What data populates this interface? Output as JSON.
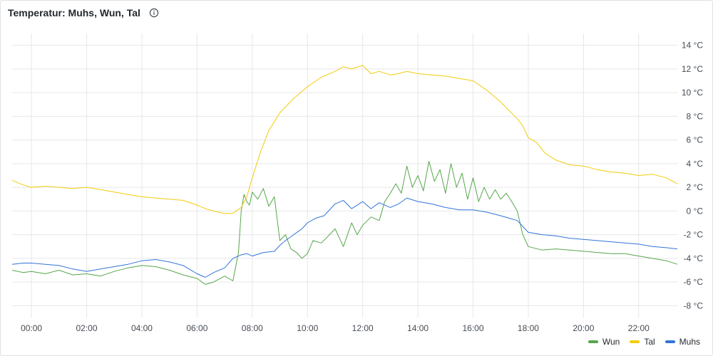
{
  "panel": {
    "title": "Temperatur: Muhs, Wun, Tal",
    "info_icon": "info-circle-icon"
  },
  "chart_data": {
    "type": "line",
    "title": "Temperatur: Muhs, Wun, Tal",
    "xlabel": "",
    "ylabel": "",
    "x_unit": "hour of day",
    "x_range": [
      -0.7,
      23.4
    ],
    "x_ticks": [
      0,
      2,
      4,
      6,
      8,
      10,
      12,
      14,
      16,
      18,
      20,
      22
    ],
    "x_tick_labels": [
      "00:00",
      "02:00",
      "04:00",
      "06:00",
      "08:00",
      "10:00",
      "12:00",
      "14:00",
      "16:00",
      "18:00",
      "20:00",
      "22:00"
    ],
    "ylim": [
      -9,
      15
    ],
    "y_ticks": [
      14,
      12,
      10,
      8,
      6,
      4,
      2,
      0,
      -2,
      -4,
      -6,
      -8
    ],
    "y_tick_labels": [
      "14 °C",
      "12 °C",
      "10 °C",
      "8 °C",
      "6 °C",
      "4 °C",
      "2 °C",
      "0 °C",
      "-2 °C",
      "-4 °C",
      "-6 °C",
      "-8 °C"
    ],
    "y_axis_position": "right",
    "grid": true,
    "legend_position": "bottom-right",
    "series": [
      {
        "name": "Wun",
        "color": "#56a64b",
        "x": [
          -0.7,
          -0.3,
          0.0,
          0.5,
          1.0,
          1.5,
          2.0,
          2.5,
          3.0,
          3.5,
          4.0,
          4.5,
          5.0,
          5.5,
          6.0,
          6.3,
          6.6,
          7.0,
          7.3,
          7.5,
          7.6,
          7.7,
          7.8,
          7.9,
          8.0,
          8.2,
          8.4,
          8.6,
          8.8,
          9.0,
          9.2,
          9.4,
          9.6,
          9.8,
          10.0,
          10.2,
          10.5,
          10.8,
          11.0,
          11.3,
          11.6,
          11.8,
          12.0,
          12.3,
          12.6,
          12.8,
          13.0,
          13.2,
          13.4,
          13.6,
          13.8,
          14.0,
          14.2,
          14.4,
          14.6,
          14.8,
          15.0,
          15.2,
          15.4,
          15.6,
          15.8,
          16.0,
          16.2,
          16.4,
          16.6,
          16.8,
          17.0,
          17.2,
          17.4,
          17.6,
          17.8,
          18.0,
          18.5,
          19.0,
          19.5,
          20.0,
          20.5,
          21.0,
          21.5,
          22.0,
          22.5,
          23.0,
          23.4
        ],
        "values": [
          -5.0,
          -5.2,
          -5.1,
          -5.3,
          -5.0,
          -5.4,
          -5.3,
          -5.5,
          -5.1,
          -4.8,
          -4.6,
          -4.7,
          -5.0,
          -5.4,
          -5.7,
          -6.2,
          -6.0,
          -5.5,
          -5.9,
          -3.5,
          0.0,
          1.4,
          0.8,
          0.5,
          1.6,
          1.0,
          1.9,
          0.4,
          1.2,
          -2.5,
          -2.0,
          -3.2,
          -3.5,
          -4.0,
          -3.6,
          -2.5,
          -2.7,
          -2.0,
          -1.5,
          -3.0,
          -1.0,
          -2.0,
          -1.2,
          -0.5,
          -0.8,
          0.8,
          1.5,
          2.3,
          1.5,
          3.8,
          2.0,
          3.0,
          1.7,
          4.2,
          2.5,
          3.5,
          1.5,
          4.0,
          2.0,
          3.2,
          1.0,
          2.8,
          0.8,
          2.0,
          1.0,
          1.8,
          1.0,
          1.5,
          0.8,
          0.0,
          -2.0,
          -3.0,
          -3.3,
          -3.2,
          -3.3,
          -3.4,
          -3.5,
          -3.6,
          -3.6,
          -3.8,
          -4.0,
          -4.2,
          -4.5
        ]
      },
      {
        "name": "Tal",
        "color": "#f2cc0c",
        "x": [
          -0.7,
          -0.3,
          0.0,
          0.5,
          1.0,
          1.5,
          2.0,
          2.5,
          3.0,
          3.5,
          4.0,
          4.5,
          5.0,
          5.5,
          6.0,
          6.3,
          6.6,
          7.0,
          7.3,
          7.6,
          7.8,
          8.0,
          8.3,
          8.6,
          9.0,
          9.5,
          10.0,
          10.5,
          11.0,
          11.3,
          11.6,
          12.0,
          12.3,
          12.6,
          13.0,
          13.3,
          13.6,
          14.0,
          14.5,
          15.0,
          15.5,
          16.0,
          16.5,
          17.0,
          17.3,
          17.6,
          17.8,
          18.0,
          18.3,
          18.6,
          19.0,
          19.5,
          20.0,
          20.5,
          21.0,
          21.5,
          22.0,
          22.5,
          23.0,
          23.4
        ],
        "values": [
          2.6,
          2.2,
          2.0,
          2.1,
          2.0,
          1.9,
          2.0,
          1.8,
          1.6,
          1.4,
          1.2,
          1.1,
          1.0,
          0.9,
          0.5,
          0.2,
          0.0,
          -0.2,
          -0.2,
          0.3,
          1.2,
          2.8,
          5.0,
          6.8,
          8.3,
          9.5,
          10.5,
          11.3,
          11.8,
          12.2,
          12.0,
          12.3,
          11.6,
          11.8,
          11.5,
          11.6,
          11.8,
          11.6,
          11.5,
          11.4,
          11.2,
          11.0,
          10.2,
          9.2,
          8.5,
          7.8,
          7.2,
          6.2,
          5.8,
          4.9,
          4.3,
          3.9,
          3.8,
          3.5,
          3.3,
          3.2,
          3.0,
          3.1,
          2.8,
          2.3
        ]
      },
      {
        "name": "Muhs",
        "color": "#3274d9",
        "x": [
          -0.7,
          -0.3,
          0.0,
          0.5,
          1.0,
          1.5,
          2.0,
          2.5,
          3.0,
          3.5,
          4.0,
          4.5,
          5.0,
          5.5,
          6.0,
          6.3,
          6.6,
          7.0,
          7.3,
          7.6,
          7.8,
          8.0,
          8.4,
          8.8,
          9.0,
          9.2,
          9.5,
          9.8,
          10.0,
          10.3,
          10.6,
          11.0,
          11.3,
          11.6,
          12.0,
          12.3,
          12.6,
          13.0,
          13.3,
          13.6,
          14.0,
          14.5,
          15.0,
          15.5,
          16.0,
          16.5,
          17.0,
          17.3,
          17.6,
          17.8,
          18.0,
          18.5,
          19.0,
          19.5,
          20.0,
          20.5,
          21.0,
          21.5,
          22.0,
          22.5,
          23.0,
          23.4
        ],
        "values": [
          -4.5,
          -4.4,
          -4.4,
          -4.5,
          -4.6,
          -4.9,
          -5.1,
          -4.9,
          -4.7,
          -4.5,
          -4.2,
          -4.1,
          -4.3,
          -4.6,
          -5.3,
          -5.6,
          -5.2,
          -4.8,
          -4.0,
          -3.7,
          -3.6,
          -3.8,
          -3.5,
          -3.4,
          -2.9,
          -2.5,
          -2.0,
          -1.5,
          -1.0,
          -0.6,
          -0.4,
          0.6,
          0.9,
          0.2,
          0.8,
          0.2,
          0.7,
          0.3,
          0.6,
          1.1,
          0.8,
          0.6,
          0.3,
          0.1,
          0.1,
          -0.1,
          -0.4,
          -0.6,
          -0.8,
          -1.3,
          -1.8,
          -2.0,
          -2.1,
          -2.3,
          -2.4,
          -2.5,
          -2.6,
          -2.7,
          -2.8,
          -3.0,
          -3.1,
          -3.2
        ]
      }
    ]
  }
}
